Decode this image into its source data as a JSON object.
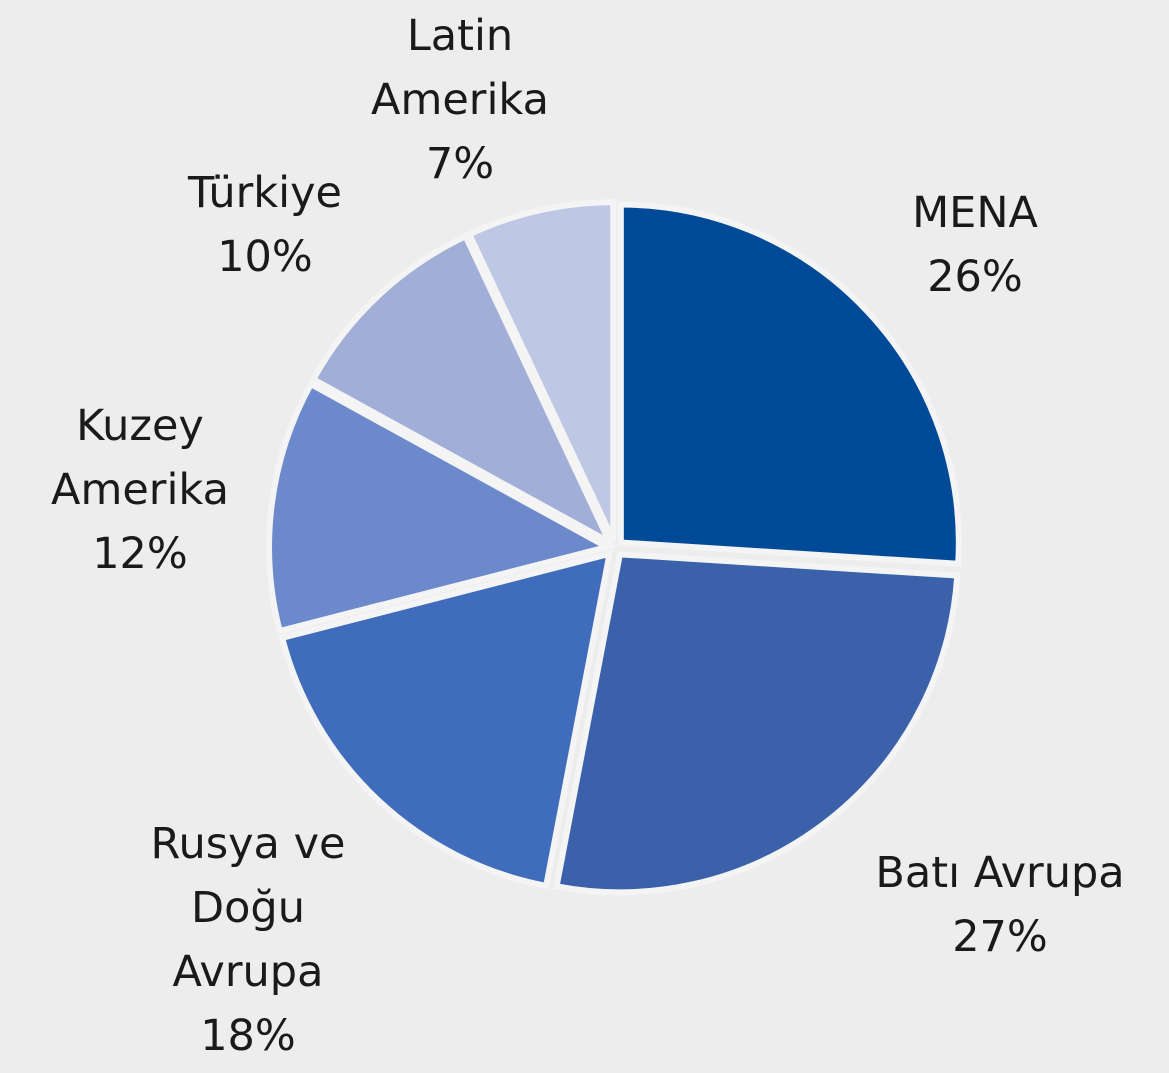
{
  "chart_data": {
    "type": "pie",
    "categories": [
      "MENA",
      "Batı Avrupa",
      "Rusya ve Doğu Avrupa",
      "Kuzey Amerika",
      "Türkiye",
      "Latin Amerika"
    ],
    "values": [
      26,
      27,
      18,
      12,
      10,
      7
    ],
    "value_labels": [
      "26%",
      "27%",
      "18%",
      "12%",
      "10%",
      "7%"
    ],
    "colors": [
      "#014a98",
      "#3a61a9",
      "#3f6dbb",
      "#6c89cb",
      "#a0aed8",
      "#bec8e5"
    ]
  }
}
